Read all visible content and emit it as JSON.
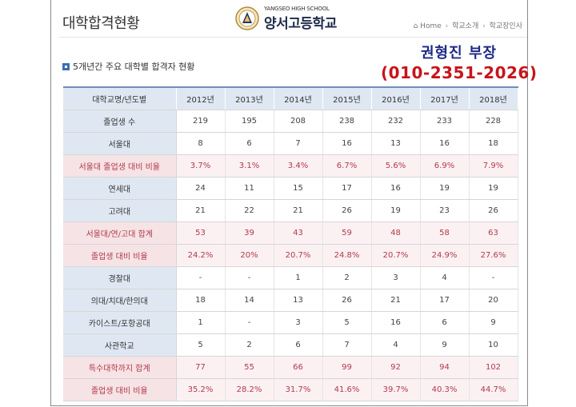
{
  "header": {
    "page_title": "대학합격현황",
    "logo_subtitle": "YANGSEO HIGH SCHOOL",
    "logo_name": "양서고등학교",
    "breadcrumb": [
      "Home",
      "학교소개",
      "학교장인사"
    ]
  },
  "contact": {
    "name": "권형진 부장",
    "phone": "(010-2351-2026)"
  },
  "section_title": "5개년간 주요 대학별 합격자 현황",
  "colors": {
    "header_bg": "#dfe8f2",
    "highlight_bg": "#fbf1f3",
    "highlight_text": "#b23a4a",
    "contact_name": "#1d2a86",
    "contact_phone": "#c8141a",
    "section_icon": "#3a6fb5"
  },
  "icons": {
    "section": "square-bullet-icon",
    "logo": "school-emblem-icon",
    "breadcrumb": "home-icon"
  },
  "table": {
    "header": [
      "대학교명/년도별",
      "2012년",
      "2013년",
      "2014년",
      "2015년",
      "2016년",
      "2017년",
      "2018년"
    ],
    "rows": [
      {
        "label": "졸업생 수",
        "values": [
          "219",
          "195",
          "208",
          "238",
          "232",
          "233",
          "228"
        ],
        "highlight": false
      },
      {
        "label": "서울대",
        "values": [
          "8",
          "6",
          "7",
          "16",
          "13",
          "16",
          "18"
        ],
        "highlight": false
      },
      {
        "label": "서울대 졸업생 대비 비율",
        "values": [
          "3.7%",
          "3.1%",
          "3.4%",
          "6.7%",
          "5.6%",
          "6.9%",
          "7.9%"
        ],
        "highlight": true
      },
      {
        "label": "연세대",
        "values": [
          "24",
          "11",
          "15",
          "17",
          "16",
          "19",
          "19"
        ],
        "highlight": false
      },
      {
        "label": "고려대",
        "values": [
          "21",
          "22",
          "21",
          "26",
          "19",
          "23",
          "26"
        ],
        "highlight": false
      },
      {
        "label": "서울대/연/고대 합계",
        "values": [
          "53",
          "39",
          "43",
          "59",
          "48",
          "58",
          "63"
        ],
        "highlight": true
      },
      {
        "label": "졸업생 대비 비율",
        "values": [
          "24.2%",
          "20%",
          "20.7%",
          "24.8%",
          "20.7%",
          "24.9%",
          "27.6%"
        ],
        "highlight": true
      },
      {
        "label": "경찰대",
        "values": [
          "-",
          "-",
          "1",
          "2",
          "3",
          "4",
          "-"
        ],
        "highlight": false
      },
      {
        "label": "의대/치대/한의대",
        "values": [
          "18",
          "14",
          "13",
          "26",
          "21",
          "17",
          "20"
        ],
        "highlight": false
      },
      {
        "label": "카이스트/포항공대",
        "values": [
          "1",
          "-",
          "3",
          "5",
          "16",
          "6",
          "9"
        ],
        "highlight": false
      },
      {
        "label": "사관학교",
        "values": [
          "5",
          "2",
          "6",
          "7",
          "4",
          "9",
          "10"
        ],
        "highlight": false
      },
      {
        "label": "특수대학까지 합계",
        "values": [
          "77",
          "55",
          "66",
          "99",
          "92",
          "94",
          "102"
        ],
        "highlight": true
      },
      {
        "label": "졸업생 대비 비율",
        "values": [
          "35.2%",
          "28.2%",
          "31.7%",
          "41.6%",
          "39.7%",
          "40.3%",
          "44.7%"
        ],
        "highlight": true
      }
    ]
  }
}
